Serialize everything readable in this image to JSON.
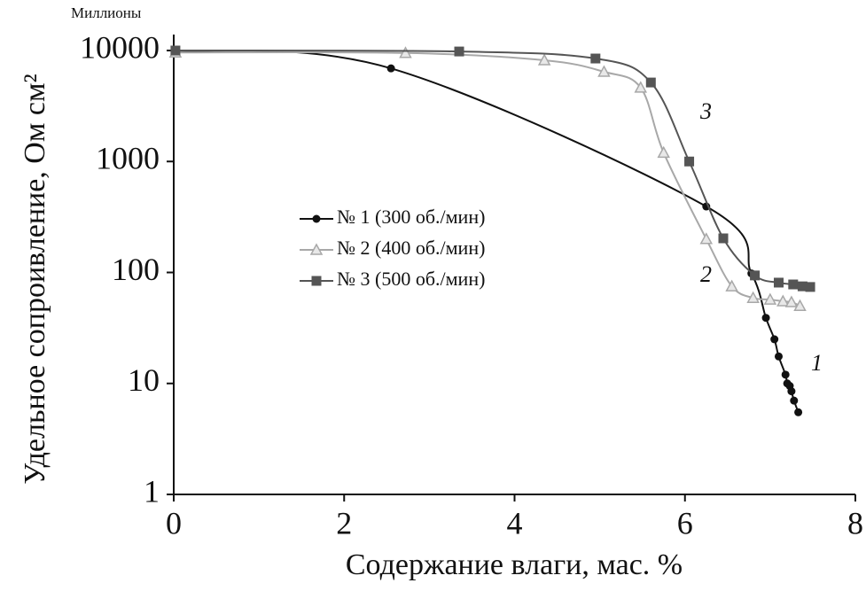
{
  "chart_data": {
    "type": "line",
    "x_label": "Содержание влаги, мас. %",
    "y_label": "Удельное сопроивление, Ом см²",
    "annotations": [
      "Миллионы",
      "1",
      "2",
      "3"
    ],
    "xlim": [
      0,
      8
    ],
    "xticks": [
      0,
      2,
      4,
      6,
      8
    ],
    "ylim": [
      1,
      10000
    ],
    "yticks": [
      1,
      10,
      100,
      1000,
      10000
    ],
    "log_y": true,
    "grid": false,
    "series": [
      {
        "name": "№ 1 (300 об./мин)",
        "color": "#111111",
        "marker": "circle",
        "x": [
          0.02,
          2.55,
          6.25,
          6.78,
          6.95,
          7.05,
          7.1,
          7.18,
          7.2,
          7.23,
          7.25,
          7.28,
          7.33
        ],
        "values": [
          10000,
          6900,
          393,
          98,
          39,
          25,
          17.5,
          12,
          10,
          9.5,
          8.5,
          7,
          5.5
        ]
      },
      {
        "name": "№ 2 (400 об./мин)",
        "color": "#a8a8a8",
        "marker": "triangle",
        "x": [
          0.02,
          2.72,
          4.35,
          5.05,
          5.48,
          5.75,
          6.25,
          6.55,
          6.8,
          7.0,
          7.15,
          7.25,
          7.35
        ],
        "values": [
          9600,
          9500,
          8170,
          6430,
          4630,
          1200,
          200,
          75,
          59,
          57,
          55,
          54,
          50
        ]
      },
      {
        "name": "№ 3 (500 об./мин)",
        "color": "#555555",
        "marker": "square",
        "x": [
          0.02,
          3.35,
          4.95,
          5.6,
          6.05,
          6.45,
          6.82,
          7.1,
          7.27,
          7.38,
          7.47
        ],
        "values": [
          10000,
          9800,
          8470,
          5150,
          1000,
          203,
          94,
          81,
          78,
          75,
          74
        ]
      }
    ]
  }
}
